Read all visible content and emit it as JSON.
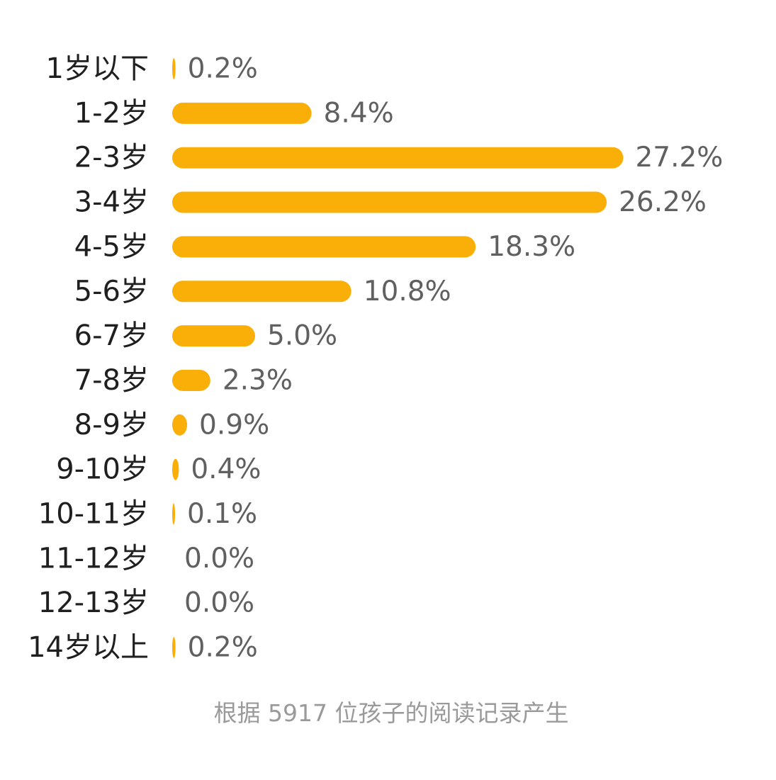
{
  "chart_data": {
    "type": "bar",
    "orientation": "horizontal",
    "categories": [
      "1岁以下",
      "1-2岁",
      "2-3岁",
      "3-4岁",
      "4-5岁",
      "5-6岁",
      "6-7岁",
      "7-8岁",
      "8-9岁",
      "9-10岁",
      "10-11岁",
      "11-12岁",
      "12-13岁",
      "14岁以上"
    ],
    "values": [
      0.2,
      8.4,
      27.2,
      26.2,
      18.3,
      10.8,
      5.0,
      2.3,
      0.9,
      0.4,
      0.1,
      0.0,
      0.0,
      0.2
    ],
    "value_labels": [
      "0.2%",
      "8.4%",
      "27.2%",
      "26.2%",
      "18.3%",
      "10.8%",
      "5.0%",
      "2.3%",
      "0.9%",
      "0.4%",
      "0.1%",
      "0.0%",
      "0.0%",
      "0.2%"
    ],
    "unit": "%",
    "title": "",
    "xlabel": "",
    "ylabel": "",
    "grid": false,
    "legend": "none",
    "bar_color": "#F9AE08"
  },
  "footnote": "根据 5917 位孩子的阅读记录产生"
}
